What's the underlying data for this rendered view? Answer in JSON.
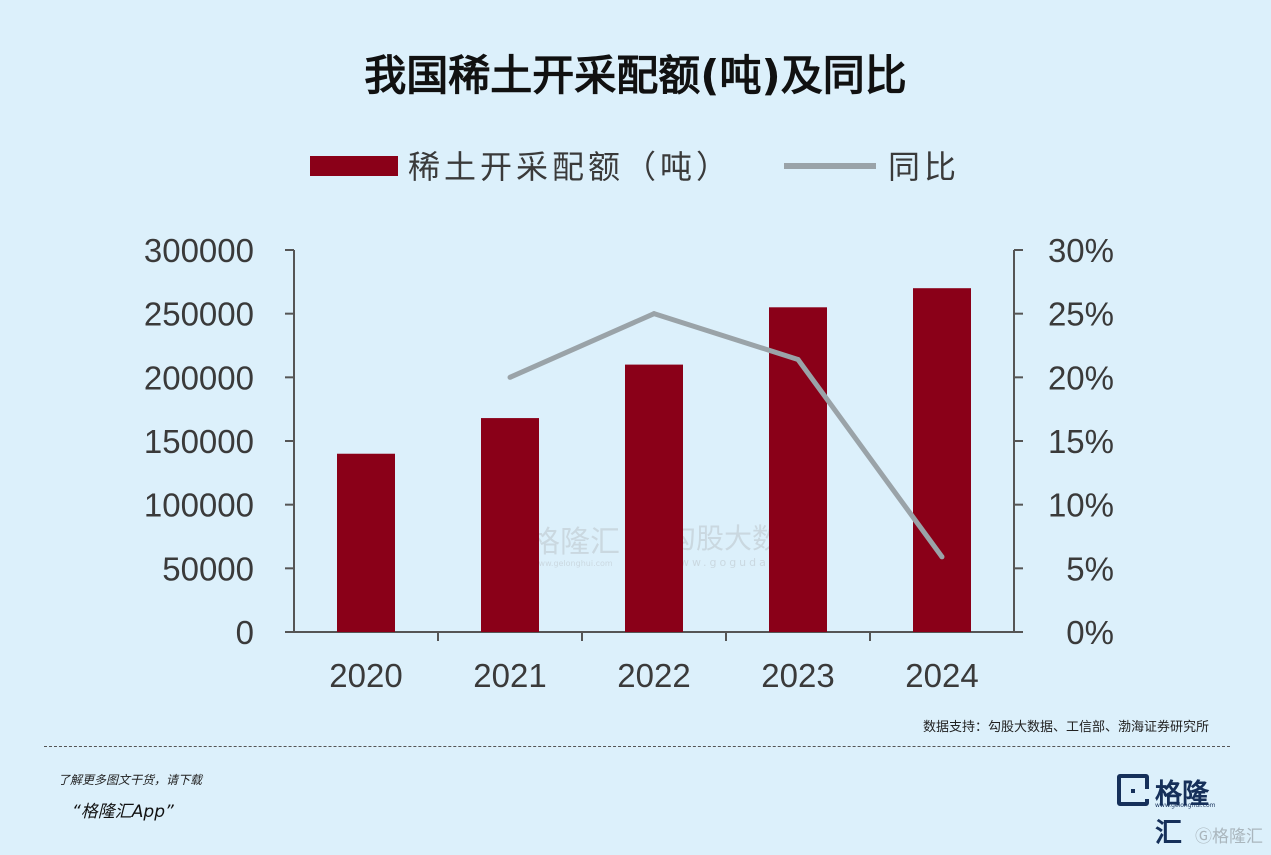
{
  "chart_data": {
    "type": "bar",
    "title": "我国稀土开采配额(吨)及同比",
    "categories": [
      "2020",
      "2021",
      "2022",
      "2023",
      "2024"
    ],
    "series": [
      {
        "name": "稀土开采配额（吨）",
        "type": "bar",
        "axis": "left",
        "color": "#8a0018",
        "values": [
          140000,
          168000,
          210000,
          255000,
          270000
        ]
      },
      {
        "name": "同比",
        "type": "line",
        "axis": "right",
        "color": "#9aa3a8",
        "values": [
          null,
          20,
          25,
          21.4,
          5.9
        ]
      }
    ],
    "y_left": {
      "min": 0,
      "max": 300000,
      "ticks": [
        "0",
        "50000",
        "100000",
        "150000",
        "200000",
        "250000",
        "300000"
      ]
    },
    "y_right": {
      "min": 0,
      "max": 30,
      "ticks": [
        "0%",
        "5%",
        "10%",
        "15%",
        "20%",
        "25%",
        "30%"
      ]
    },
    "legend_position": "top",
    "grid": false
  },
  "source": "数据支持：勾股大数据、工信部、渤海证券研究所",
  "watermark": {
    "left_text": "格隆汇",
    "left_url": "www.gelonghui.com",
    "right_text": "勾股大数据",
    "right_url": "www.gogudata.com"
  },
  "footer": {
    "note": "了解更多图文干货，请下载",
    "app": "“格隆汇App”",
    "logo_text": "格隆汇",
    "logo_url": "www.gelonghui.com",
    "corner_mark": "格隆汇"
  },
  "icons": {
    "logo": "gelonghui-logo-icon",
    "corner": "gelonghui-g-icon"
  }
}
